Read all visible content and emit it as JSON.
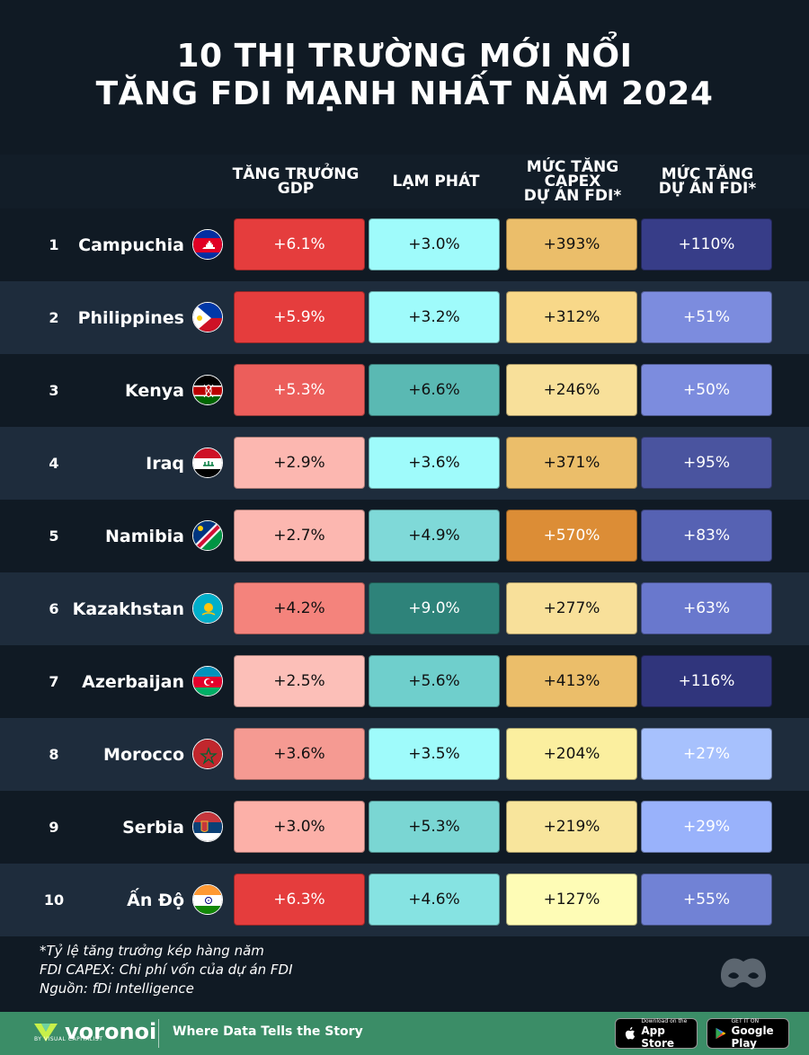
{
  "title_line1": "10 THỊ TRƯỜNG MỚI NỔI",
  "title_line2": "TĂNG FDI MẠNH NHẤT NĂM 2024",
  "headers": {
    "gdp": "TĂNG TRƯỞNG\nGDP",
    "inflation": "LẠM PHÁT",
    "capex": "MỨC TĂNG\nCAPEX\nDỰ ÁN FDI*",
    "projects": "MỨC TĂNG\nDỰ ÁN FDI*"
  },
  "chart_data": {
    "type": "table",
    "columns": [
      "TĂNG TRƯỞNG GDP",
      "LẠM PHÁT",
      "MỨC TĂNG CAPEX DỰ ÁN FDI*",
      "MỨC TĂNG DỰ ÁN FDI*"
    ],
    "rows": [
      {
        "rank": "1",
        "country": "Campuchia",
        "flag": "cambodia-flag",
        "gdp": "+6.1%",
        "inflation": "+3.0%",
        "capex": "+393%",
        "projects": "+110%"
      },
      {
        "rank": "2",
        "country": "Philippines",
        "flag": "philippines-flag",
        "gdp": "+5.9%",
        "inflation": "+3.2%",
        "capex": "+312%",
        "projects": "+51%"
      },
      {
        "rank": "3",
        "country": "Kenya",
        "flag": "kenya-flag",
        "gdp": "+5.3%",
        "inflation": "+6.6%",
        "capex": "+246%",
        "projects": "+50%"
      },
      {
        "rank": "4",
        "country": "Iraq",
        "flag": "iraq-flag",
        "gdp": "+2.9%",
        "inflation": "+3.6%",
        "capex": "+371%",
        "projects": "+95%"
      },
      {
        "rank": "5",
        "country": "Namibia",
        "flag": "namibia-flag",
        "gdp": "+2.7%",
        "inflation": "+4.9%",
        "capex": "+570%",
        "projects": "+83%"
      },
      {
        "rank": "6",
        "country": "Kazakhstan",
        "flag": "kazakhstan-flag",
        "gdp": "+4.2%",
        "inflation": "+9.0%",
        "capex": "+277%",
        "projects": "+63%"
      },
      {
        "rank": "7",
        "country": "Azerbaijan",
        "flag": "azerbaijan-flag",
        "gdp": "+2.5%",
        "inflation": "+5.6%",
        "capex": "+413%",
        "projects": "+116%"
      },
      {
        "rank": "8",
        "country": "Morocco",
        "flag": "morocco-flag",
        "gdp": "+3.6%",
        "inflation": "+3.5%",
        "capex": "+204%",
        "projects": "+27%"
      },
      {
        "rank": "9",
        "country": "Serbia",
        "flag": "serbia-flag",
        "gdp": "+3.0%",
        "inflation": "+5.3%",
        "capex": "+219%",
        "projects": "+29%"
      },
      {
        "rank": "10",
        "country": "Ấn Độ",
        "flag": "india-flag",
        "gdp": "+6.3%",
        "inflation": "+4.6%",
        "capex": "+127%",
        "projects": "+55%"
      }
    ],
    "cell_colors": {
      "gdp": [
        "#e53d3d",
        "#e53d3d",
        "#ec5e5b",
        "#fcb7b0",
        "#fcb7b0",
        "#f4837c",
        "#fcbfb8",
        "#f59a92",
        "#fcb0a8",
        "#e53d3d"
      ],
      "inflation": [
        "#9ffbfb",
        "#9ffbfb",
        "#5ab9b3",
        "#9ffbfb",
        "#7fd9d8",
        "#2e837a",
        "#6fcfcc",
        "#9ffbfb",
        "#7ad6d3",
        "#86e3e2"
      ],
      "capex": [
        "#ebbe6a",
        "#f8d889",
        "#f8e09a",
        "#ebbe6a",
        "#dc8d36",
        "#f8e09a",
        "#ebbe6a",
        "#fbef9f",
        "#f8e59c",
        "#fefcb6"
      ],
      "projects": [
        "#373d88",
        "#7c8cde",
        "#7c8cde",
        "#4a549f",
        "#5662b3",
        "#6978cd",
        "#30357c",
        "#a7c1fd",
        "#99b2fb",
        "#7182d5"
      ]
    }
  },
  "notes": {
    "line1": "*Tỷ lệ tăng trưởng kép hàng năm",
    "line2": "FDI CAPEX: Chi phí vốn của dự án FDI",
    "line3": "Nguồn: fDi Intelligence"
  },
  "footer": {
    "brand": "voronoi",
    "brand_sub": "BY VISUAL CAPITALIST",
    "tagline": "Where Data Tells the Story",
    "appstore_small": "Download on the",
    "appstore_big": "App Store",
    "googleplay_small": "GET IT ON",
    "googleplay_big": "Google Play"
  }
}
